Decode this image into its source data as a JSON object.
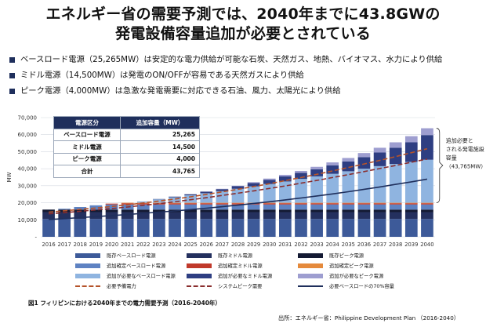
{
  "title_line1": "エネルギー省の需要予測では、2040年までに43.8GWの",
  "title_line2": "発電設備容量追加が必要とされている",
  "bullets": [
    {
      "text": "ベースロード電源（25,265MW）は安定的な電力供給が可能な石炭、天然ガス、地熱、バイオマス、水力により供給",
      "color": "#1f2f5c"
    },
    {
      "text": "ミドル電源（14,500MW）は発電のON/OFFが容易である天然ガスにより供給",
      "color": "#1f2f5c"
    },
    {
      "text": "ピーク電源（4,000MW）は急激な発電需要に対応できる石油、風力、太陽光により供給",
      "color": "#1f2f5c"
    }
  ],
  "table": {
    "headers": [
      "電源区分",
      "追加容量（MW）"
    ],
    "rows": [
      [
        "ベースロード電源",
        "25,265"
      ],
      [
        "ミドル電源",
        "14,500"
      ],
      [
        "ピーク電源",
        "4,000"
      ],
      [
        "合計",
        "43,765"
      ]
    ]
  },
  "annotation": {
    "line1": "追加必要と",
    "line2": "される発電施設",
    "line3": "容量",
    "line4": "（43,765MW）"
  },
  "legend": [
    {
      "label": "既存ベースロード電源",
      "type": "box",
      "color": "#3d5a99"
    },
    {
      "label": "既存ミドル電源",
      "type": "box",
      "color": "#24305e"
    },
    {
      "label": "既存ピーク電源",
      "type": "box",
      "color": "#141a33"
    },
    {
      "label": "追加確定ベースロード電源",
      "type": "box",
      "color": "#5e82c2"
    },
    {
      "label": "追加確定ミドル電源",
      "type": "box",
      "color": "#c0392b"
    },
    {
      "label": "追加確定ピーク電源",
      "type": "box",
      "color": "#e58a3c"
    },
    {
      "label": "追加が必要なベースロード電源",
      "type": "box",
      "color": "#8fb4e0"
    },
    {
      "label": "追加が必要なミドル電源",
      "type": "box",
      "color": "#2e3e82"
    },
    {
      "label": "追加が必要なピーク電源",
      "type": "box",
      "color": "#9e9ed0"
    },
    {
      "label": "必要予備電力",
      "type": "dash",
      "color": "#b5532a"
    },
    {
      "label": "システムピーク需要",
      "type": "dash",
      "color": "#8a2e2e"
    },
    {
      "label": "必要ベースロードの70%容量",
      "type": "line",
      "color": "#1f2f5c"
    }
  ],
  "caption": "図1 フィリピンにおける2040年までの電力需要予測（2016-2040年）",
  "source": "出所：エネルギー省：Philippine Development Plan （2016-2040）",
  "chart_data": {
    "type": "bar",
    "stacked": true,
    "ylabel": "MW",
    "ylim": [
      0,
      70000
    ],
    "yticks": [
      "-",
      "10,000",
      "20,000",
      "30,000",
      "40,000",
      "50,000",
      "60,000",
      "70,000"
    ],
    "categories": [
      "2016",
      "2017",
      "2018",
      "2019",
      "2020",
      "2021",
      "2022",
      "2023",
      "2024",
      "2025",
      "2026",
      "2027",
      "2028",
      "2029",
      "2030",
      "2031",
      "2032",
      "2033",
      "2034",
      "2035",
      "2036",
      "2037",
      "2038",
      "2039",
      "2040"
    ],
    "series": [
      {
        "name": "既存ベースロード電源",
        "color": "#3d5a99",
        "values": [
          10500,
          10500,
          10500,
          10500,
          10500,
          10500,
          10500,
          10500,
          10500,
          10500,
          10500,
          10500,
          10500,
          10500,
          10500,
          10500,
          10500,
          10500,
          10500,
          10500,
          10500,
          10500,
          10500,
          10500,
          10500
        ]
      },
      {
        "name": "既存ミドル電源",
        "color": "#24305e",
        "values": [
          4000,
          4000,
          4000,
          4000,
          4000,
          4000,
          4000,
          4000,
          4000,
          4000,
          4000,
          4000,
          4000,
          4000,
          4000,
          4000,
          4000,
          4000,
          4000,
          4000,
          4000,
          4000,
          4000,
          4000,
          4000
        ]
      },
      {
        "name": "既存ピーク電源",
        "color": "#141a33",
        "values": [
          1500,
          1500,
          1500,
          1500,
          1500,
          1500,
          1500,
          1500,
          1500,
          1500,
          1500,
          1500,
          1500,
          1500,
          1500,
          1500,
          1500,
          1500,
          1500,
          1500,
          1500,
          1500,
          1500,
          1500,
          1500
        ]
      },
      {
        "name": "追加確定ベースロード電源",
        "color": "#5e82c2",
        "values": [
          0,
          500,
          1500,
          2500,
          3000,
          3000,
          3000,
          3000,
          3000,
          3000,
          3000,
          3000,
          3000,
          3000,
          3000,
          3000,
          3000,
          3000,
          3000,
          3000,
          3000,
          3000,
          3000,
          3000,
          3000
        ]
      },
      {
        "name": "追加確定ミドル電源",
        "color": "#c0392b",
        "values": [
          0,
          0,
          0,
          0,
          500,
          700,
          700,
          700,
          700,
          700,
          700,
          700,
          700,
          700,
          700,
          700,
          700,
          700,
          700,
          700,
          700,
          700,
          700,
          700,
          700
        ]
      },
      {
        "name": "追加確定ピーク電源",
        "color": "#e58a3c",
        "values": [
          0,
          0,
          0,
          0,
          0,
          300,
          300,
          300,
          300,
          300,
          300,
          300,
          300,
          300,
          300,
          300,
          300,
          300,
          300,
          300,
          300,
          300,
          300,
          300,
          300
        ]
      },
      {
        "name": "追加が必要なベースロード電源",
        "color": "#8fb4e0",
        "values": [
          0,
          0,
          0,
          0,
          0,
          0,
          800,
          2000,
          3200,
          4400,
          5600,
          6800,
          8200,
          9600,
          11000,
          12500,
          14000,
          15500,
          17000,
          18500,
          20000,
          21500,
          22800,
          24000,
          25265
        ]
      },
      {
        "name": "追加が必要なミドル電源",
        "color": "#2e3e82",
        "values": [
          0,
          0,
          0,
          0,
          0,
          0,
          0,
          200,
          400,
          600,
          900,
          1200,
          1500,
          2000,
          2500,
          3000,
          3600,
          4200,
          5000,
          5800,
          6800,
          8000,
          9500,
          11500,
          14500
        ]
      },
      {
        "name": "追加が必要なピーク電源",
        "color": "#9e9ed0",
        "values": [
          0,
          0,
          0,
          0,
          0,
          0,
          0,
          0,
          0,
          0,
          100,
          200,
          300,
          500,
          700,
          900,
          1100,
          1400,
          1700,
          2000,
          2400,
          2800,
          3200,
          3600,
          4000
        ]
      }
    ],
    "lines": [
      {
        "name": "必要予備電力",
        "style": "dash",
        "color": "#b5532a",
        "values": [
          14500,
          15300,
          16100,
          16900,
          17800,
          18800,
          19900,
          21000,
          22200,
          23500,
          24900,
          26400,
          27900,
          29500,
          31200,
          33000,
          34800,
          36700,
          38700,
          40700,
          42800,
          44900,
          47100,
          49400,
          51700
        ]
      },
      {
        "name": "システムピーク需要",
        "style": "dash",
        "color": "#8a2e2e",
        "values": [
          13500,
          14200,
          15000,
          15800,
          16600,
          17500,
          18500,
          19500,
          20600,
          21800,
          23000,
          24300,
          25600,
          27000,
          28400,
          29900,
          31500,
          33100,
          34800,
          36500,
          38300,
          40100,
          41900,
          43800,
          45700
        ]
      },
      {
        "name": "必要ベースロードの70%容量",
        "style": "solid",
        "color": "#1f2f5c",
        "values": [
          10200,
          10700,
          11300,
          11900,
          12500,
          13100,
          13800,
          14500,
          15200,
          16000,
          16800,
          17700,
          18600,
          19600,
          20600,
          21700,
          22800,
          24000,
          25200,
          26500,
          27900,
          29300,
          30800,
          32300,
          33900
        ]
      }
    ]
  }
}
